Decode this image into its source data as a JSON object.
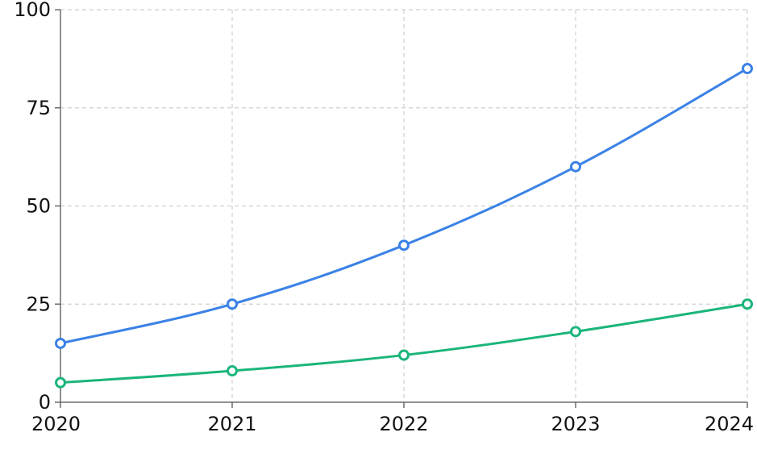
{
  "chart_data": {
    "type": "line",
    "title": "",
    "xlabel": "",
    "ylabel": "",
    "x": [
      "2020",
      "2021",
      "2022",
      "2023",
      "2024"
    ],
    "ylim": [
      0,
      100
    ],
    "yticks": [
      "0",
      "25",
      "50",
      "75",
      "100"
    ],
    "grid": true,
    "legend": "none",
    "series": [
      {
        "color": "#3b82e6",
        "values": [
          15,
          25,
          40,
          60,
          85
        ]
      },
      {
        "color": "#1bb57a",
        "values": [
          5,
          8,
          12,
          18,
          25
        ]
      }
    ]
  }
}
